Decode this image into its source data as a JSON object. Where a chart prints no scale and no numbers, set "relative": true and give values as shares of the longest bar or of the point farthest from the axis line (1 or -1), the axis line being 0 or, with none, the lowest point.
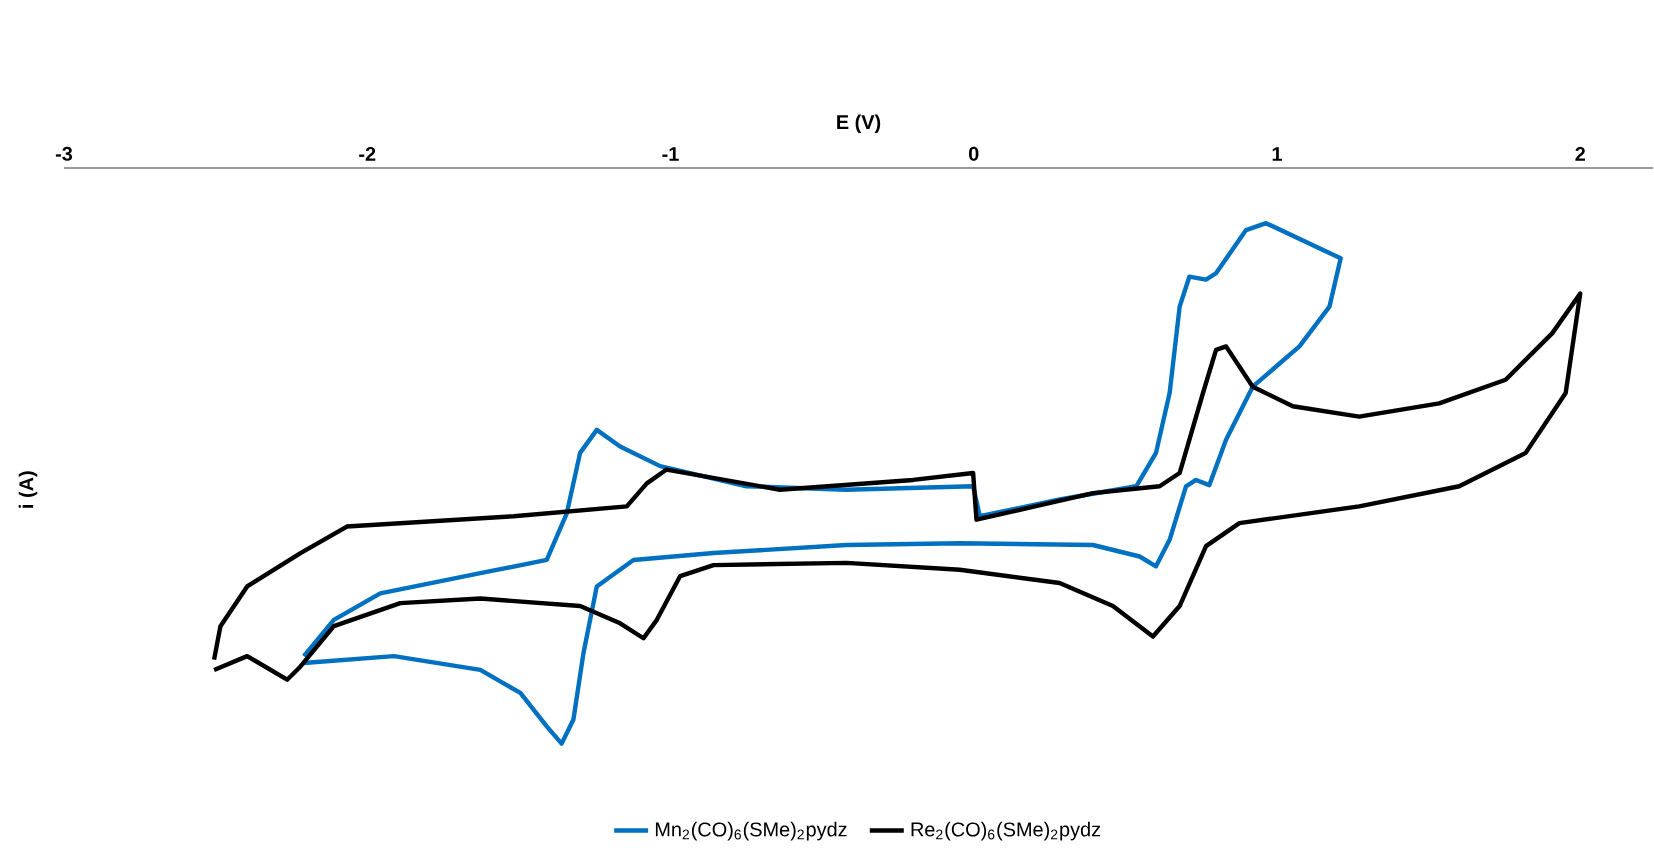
{
  "chart_data": {
    "type": "line",
    "xlabel": "E (V)",
    "ylabel": "i (A)",
    "relative": true,
    "xlim": [
      -3,
      2.24
    ],
    "xticks": [
      -3,
      -2,
      -1,
      0,
      1,
      2
    ],
    "tick_labels": "x",
    "legend": "bottom",
    "marker": "none",
    "line_style": "solid",
    "series": [
      {
        "name": "Mn$_{2}$(CO)$_{6}$(SMe)$_{2}$pydz",
        "color": "#0070c0",
        "x": [
          -2.209,
          -1.912,
          -1.627,
          -1.495,
          -1.408,
          -1.359,
          -1.32,
          -1.287,
          -1.243,
          -1.122,
          -0.858,
          -0.42,
          -0.046,
          0.393,
          0.547,
          0.601,
          0.646,
          0.7,
          0.733,
          0.777,
          0.832,
          0.92,
          1.074,
          1.173,
          1.21,
          1.173,
          0.964,
          0.898,
          0.799,
          0.766,
          0.711,
          0.679,
          0.646,
          0.601,
          0.536,
          0.283,
          0.02,
          -0.002,
          -0.42,
          -0.749,
          -1.034,
          -1.166,
          -1.243,
          -1.298,
          -1.342,
          -1.408,
          -1.627,
          -1.957,
          -2.11,
          -2.209
        ],
        "values": [
          -0.86,
          -0.848,
          -0.872,
          -0.912,
          -0.97,
          -1.0,
          -0.958,
          -0.843,
          -0.727,
          -0.681,
          -0.669,
          -0.655,
          -0.652,
          -0.655,
          -0.675,
          -0.692,
          -0.646,
          -0.553,
          -0.542,
          -0.551,
          -0.472,
          -0.38,
          -0.31,
          -0.241,
          -0.157,
          -0.148,
          -0.096,
          -0.108,
          -0.183,
          -0.194,
          -0.189,
          -0.241,
          -0.391,
          -0.495,
          -0.553,
          -0.576,
          -0.605,
          -0.553,
          -0.559,
          -0.553,
          -0.518,
          -0.484,
          -0.455,
          -0.495,
          -0.6,
          -0.681,
          -0.704,
          -0.739,
          -0.785,
          -0.848
        ]
      },
      {
        "name": "Re$_{2}$(CO)$_{6}$(SMe)$_{2}$pydz",
        "color": "#000000",
        "x": [
          -2.505,
          -2.396,
          -2.264,
          -2.22,
          -2.11,
          -1.891,
          -1.627,
          -1.298,
          -1.166,
          -1.089,
          -1.045,
          -0.968,
          -0.858,
          -0.42,
          -0.046,
          0.283,
          0.459,
          0.591,
          0.679,
          0.766,
          0.876,
          1.271,
          1.601,
          1.82,
          1.952,
          2.0,
          1.908,
          1.754,
          1.535,
          1.271,
          1.052,
          0.92,
          0.832,
          0.799,
          0.756,
          0.679,
          0.613,
          0.393,
          0.009,
          -0.002,
          -0.2,
          -0.639,
          -1.013,
          -1.078,
          -1.144,
          -1.517,
          -2.067,
          -2.22,
          -2.396,
          -2.484,
          -2.505
        ],
        "values": [
          -0.872,
          -0.848,
          -0.889,
          -0.866,
          -0.796,
          -0.756,
          -0.748,
          -0.761,
          -0.791,
          -0.817,
          -0.785,
          -0.709,
          -0.69,
          -0.686,
          -0.698,
          -0.721,
          -0.761,
          -0.814,
          -0.761,
          -0.657,
          -0.617,
          -0.588,
          -0.553,
          -0.495,
          -0.391,
          -0.218,
          -0.287,
          -0.368,
          -0.409,
          -0.432,
          -0.414,
          -0.38,
          -0.31,
          -0.316,
          -0.391,
          -0.53,
          -0.553,
          -0.565,
          -0.611,
          -0.53,
          -0.542,
          -0.559,
          -0.524,
          -0.548,
          -0.588,
          -0.605,
          -0.623,
          -0.669,
          -0.727,
          -0.796,
          -0.854
        ]
      }
    ]
  }
}
